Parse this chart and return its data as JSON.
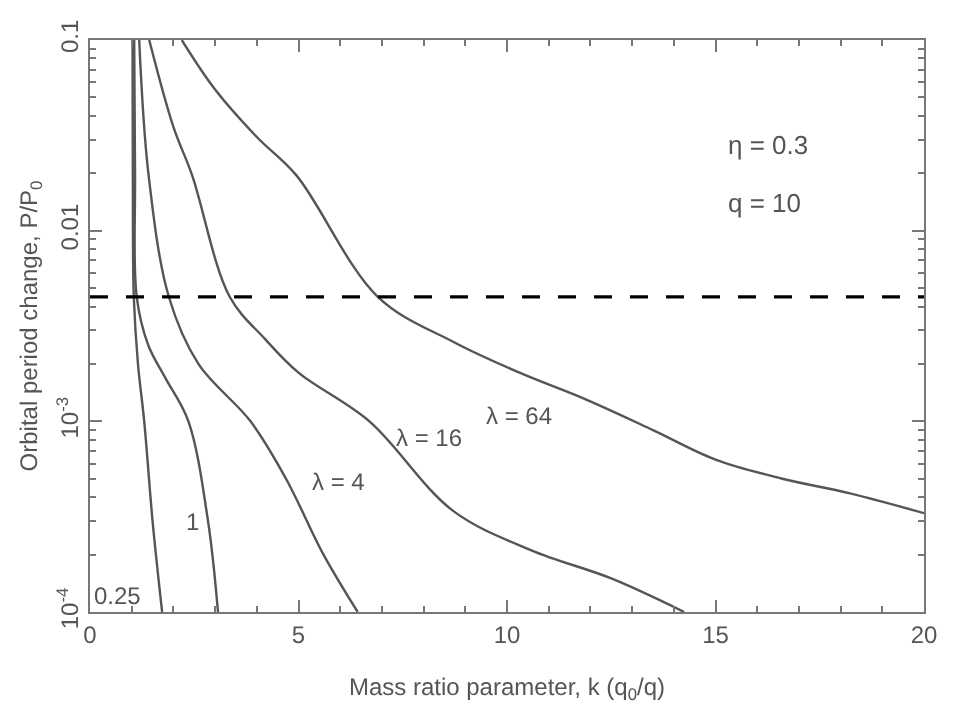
{
  "chart_data": {
    "type": "line",
    "xlabel": "Mass ratio parameter, k (q$_{0}$/q)",
    "ylabel": "Orbital period change, P/P$_{0}$",
    "log": "y",
    "xlim": [
      0,
      20
    ],
    "ylim": [
      0.0001,
      0.1
    ],
    "xticks": [
      0,
      5,
      10,
      15,
      20
    ],
    "yticks": [
      {
        "value": 0.0001,
        "label": "10$^{-4}$"
      },
      {
        "value": 0.001,
        "label": "10$^{-3}$"
      },
      0.01,
      0.1
    ],
    "legend": false,
    "marker": "none",
    "line_style": "solid",
    "series": [
      {
        "name": "0.25",
        "color": "#555555",
        "x": [
          1.02,
          1.03,
          1.05,
          1.15,
          1.3,
          1.5,
          1.73
        ],
        "values": [
          0.1,
          0.01,
          0.0045,
          0.002,
          0.001,
          0.0003,
          0.0001
        ]
      },
      {
        "name": "1",
        "color": "#555555",
        "x": [
          1.06,
          1.08,
          1.12,
          1.4,
          1.8,
          2.36,
          2.83,
          3.07
        ],
        "values": [
          0.1,
          0.02,
          0.0045,
          0.0025,
          0.0017,
          0.001,
          0.0003,
          0.0001
        ]
      },
      {
        "name": "λ = 4",
        "color": "#555555",
        "x": [
          1.18,
          1.4,
          1.89,
          2.6,
          3.85,
          4.7,
          5.6,
          6.42
        ],
        "values": [
          0.1,
          0.02,
          0.0045,
          0.002,
          0.001,
          0.0005,
          0.0002,
          0.0001
        ]
      },
      {
        "name": "λ = 16",
        "color": "#555555",
        "x": [
          1.42,
          2.0,
          2.45,
          3.35,
          4.2,
          5.0,
          6.7,
          8.7,
          10.6,
          12.5,
          14.25
        ],
        "values": [
          0.1,
          0.035,
          0.0195,
          0.0045,
          0.0027,
          0.0018,
          0.001,
          0.00034,
          0.00021,
          0.00015,
          0.0001
        ]
      },
      {
        "name": "λ = 64",
        "color": "#555555",
        "x": [
          2.2,
          3.0,
          4.0,
          4.95,
          6.9,
          8.73,
          10.3,
          11.9,
          13.5,
          15.0,
          16.6,
          18.2,
          20.0
        ],
        "values": [
          0.1,
          0.055,
          0.031,
          0.0195,
          0.0045,
          0.0026,
          0.0018,
          0.0013,
          0.0009,
          0.00063,
          0.0005,
          0.00042,
          0.00033
        ]
      }
    ],
    "ref_lines": [
      {
        "axis": "y",
        "value": 0.0045,
        "color": "#000000",
        "line_style": "dashed"
      }
    ],
    "annotations": [
      "η = 0.3",
      "q = 10"
    ]
  }
}
